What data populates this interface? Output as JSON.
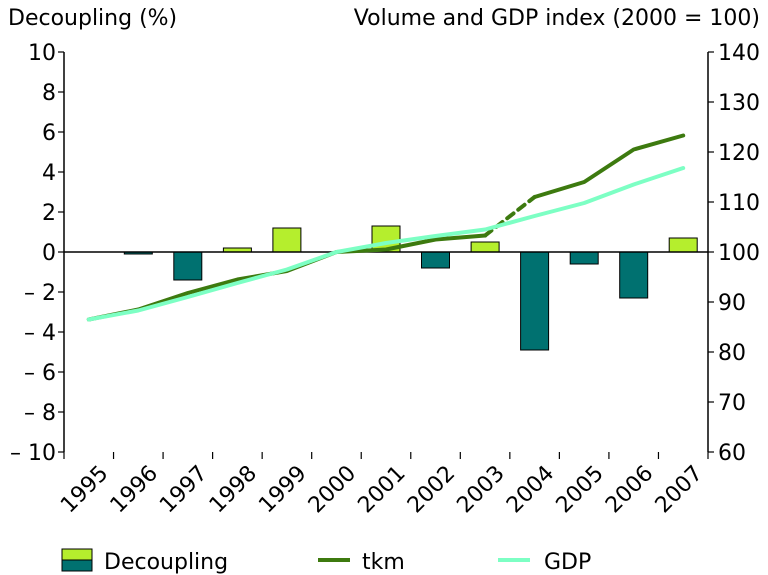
{
  "chart_data": {
    "type": "bar+line",
    "title_left": "Decoupling (%)",
    "title_right": "Volume and GDP index (2000 = 100)",
    "categories": [
      "1995",
      "1996",
      "1997",
      "1998",
      "1999",
      "2000",
      "2001",
      "2002",
      "2003",
      "2004",
      "2005",
      "2006",
      "2007"
    ],
    "y_left": {
      "min": -10,
      "max": 10,
      "ticks": [
        "10",
        "8",
        "6",
        "4",
        "2",
        "0",
        "– 2",
        "– 4",
        "– 6",
        "– 8",
        "– 10"
      ],
      "tick_values": [
        10,
        8,
        6,
        4,
        2,
        0,
        -2,
        -4,
        -6,
        -8,
        -10
      ]
    },
    "y_right": {
      "min": 60,
      "max": 140,
      "ticks": [
        "140",
        "130",
        "120",
        "110",
        "100",
        "90",
        "80",
        "70",
        "60"
      ],
      "tick_values": [
        140,
        130,
        120,
        110,
        100,
        90,
        80,
        70,
        60
      ]
    },
    "decoupling": {
      "name": "Decoupling",
      "values": [
        null,
        -0.1,
        -1.4,
        0.2,
        1.2,
        null,
        1.3,
        -0.8,
        0.5,
        -4.9,
        -0.6,
        -2.3,
        0.7
      ],
      "positive_color": "#b5ee2d",
      "negative_color": "#007170"
    },
    "series": [
      {
        "name": "tkm",
        "axis": "right",
        "color": "#3d7a0f",
        "values": [
          86.5,
          88.5,
          91.8,
          94.5,
          96.2,
          100,
          100.5,
          102.5,
          103.3,
          111,
          114,
          120.5,
          123.3
        ],
        "dashed_segment": [
          8,
          9
        ]
      },
      {
        "name": "GDP",
        "axis": "right",
        "color": "#7dffc4",
        "values": [
          86.5,
          88.3,
          91,
          93.8,
          96.5,
          100,
          101.8,
          103.2,
          104.5,
          107.2,
          109.8,
          113.5,
          116.8
        ]
      }
    ],
    "legend": {
      "position": "bottom",
      "items": [
        {
          "label": "Decoupling",
          "kind": "bar-pair"
        },
        {
          "label": "tkm",
          "kind": "line"
        },
        {
          "label": "GDP",
          "kind": "line"
        }
      ]
    }
  }
}
